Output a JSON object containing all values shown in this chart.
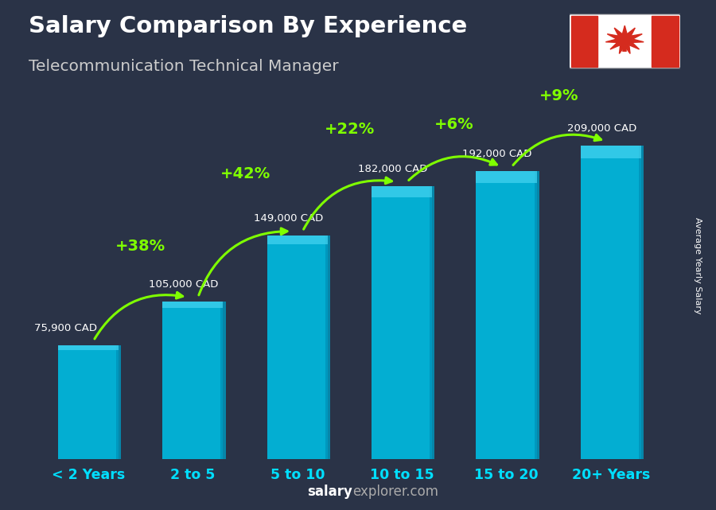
{
  "title_line1": "Salary Comparison By Experience",
  "title_line2": "Telecommunication Technical Manager",
  "categories": [
    "< 2 Years",
    "2 to 5",
    "5 to 10",
    "10 to 15",
    "15 to 20",
    "20+ Years"
  ],
  "values": [
    75900,
    105000,
    149000,
    182000,
    192000,
    209000
  ],
  "salary_labels": [
    "75,900 CAD",
    "105,000 CAD",
    "149,000 CAD",
    "182,000 CAD",
    "192,000 CAD",
    "209,000 CAD"
  ],
  "salary_label_offsets": [
    -0.55,
    -0.1,
    -0.1,
    -0.1,
    -0.1,
    -0.1
  ],
  "pct_labels": [
    "+38%",
    "+42%",
    "+22%",
    "+6%",
    "+9%"
  ],
  "pct_color": "#7FFF00",
  "salary_label_color": "#FFFFFF",
  "title_color": "#FFFFFF",
  "subtitle_color": "#CCCCCC",
  "bar_color_main": "#00BADF",
  "bar_color_light": "#45D4F0",
  "bar_color_dark": "#0095BB",
  "footer_salary_color": "#FFFFFF",
  "footer_explorer_color": "#AAAAAA",
  "ylabel_text": "Average Yearly Salary",
  "background_color": "#2a3347",
  "ylim": [
    0,
    245000
  ],
  "bar_width": 0.58
}
